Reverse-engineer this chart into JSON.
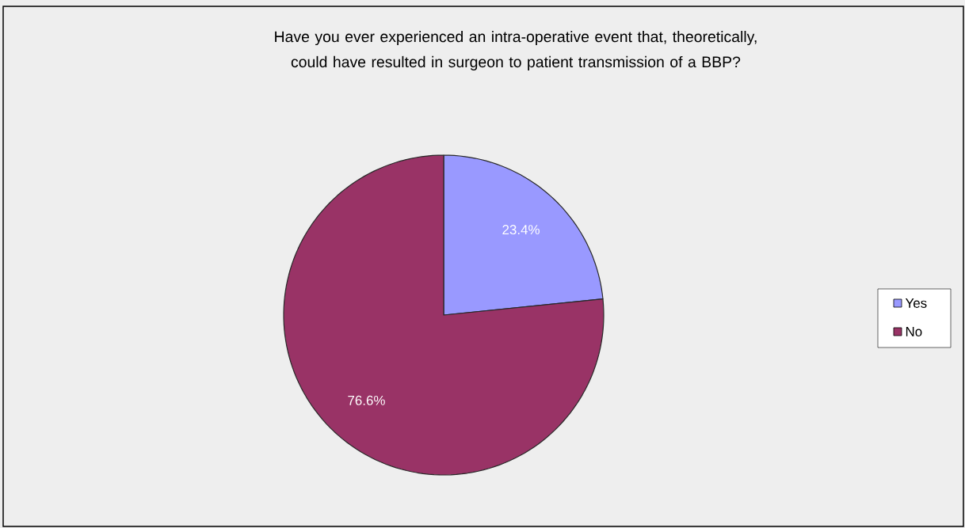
{
  "chart_data": {
    "type": "pie",
    "title": "Have you ever experienced an intra-operative event that, theoretically, could have resulted in surgeon to patient transmission of a BBP?",
    "categories": [
      "Yes",
      "No"
    ],
    "values": [
      23.4,
      76.6
    ],
    "colors": [
      "#9999ff",
      "#993366"
    ],
    "value_labels": [
      "23.4%",
      "76.6%"
    ],
    "legend": "right"
  }
}
